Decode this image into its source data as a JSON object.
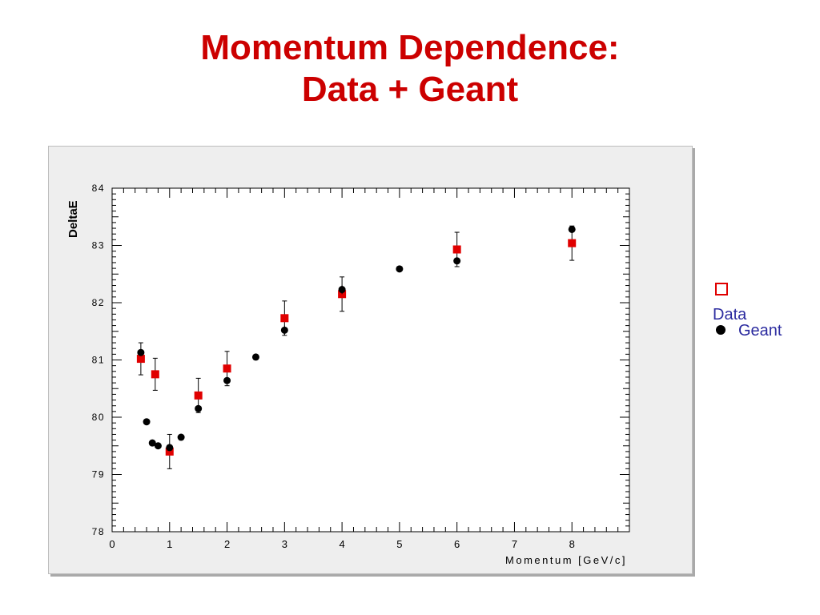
{
  "slide": {
    "title_line1": "Momentum Dependence:",
    "title_line2": "Data + Geant"
  },
  "legend": {
    "data_label": "Data",
    "geant_label": "Geant"
  },
  "chart_data": {
    "type": "scatter",
    "xlabel": "Momentum [GeV/c]",
    "ylabel": "DeltaE",
    "xlim": [
      0,
      9
    ],
    "ylim": [
      78,
      84
    ],
    "xticks": [
      0,
      1,
      2,
      3,
      4,
      5,
      6,
      7,
      8
    ],
    "yticks": [
      78,
      79,
      80,
      81,
      82,
      83,
      84
    ],
    "grid": false,
    "legend_position": "right",
    "series": [
      {
        "name": "Data",
        "marker": "square",
        "color": "#e00000",
        "points": [
          {
            "x": 0.5,
            "y": 81.02,
            "err": 0.28
          },
          {
            "x": 0.75,
            "y": 80.75,
            "err": 0.28
          },
          {
            "x": 1.0,
            "y": 79.4,
            "err": 0.3
          },
          {
            "x": 1.5,
            "y": 80.38,
            "err": 0.3
          },
          {
            "x": 2.0,
            "y": 80.85,
            "err": 0.3
          },
          {
            "x": 3.0,
            "y": 81.73,
            "err": 0.3
          },
          {
            "x": 4.0,
            "y": 82.15,
            "err": 0.3
          },
          {
            "x": 6.0,
            "y": 82.93,
            "err": 0.3
          },
          {
            "x": 8.0,
            "y": 83.04,
            "err": 0.3
          }
        ]
      },
      {
        "name": "Geant",
        "marker": "circle",
        "color": "#000000",
        "points": [
          {
            "x": 0.5,
            "y": 81.13,
            "err": 0.05
          },
          {
            "x": 0.6,
            "y": 79.92,
            "err": 0.05
          },
          {
            "x": 0.7,
            "y": 79.55,
            "err": 0.05
          },
          {
            "x": 0.8,
            "y": 79.5,
            "err": 0.04
          },
          {
            "x": 1.0,
            "y": 79.47,
            "err": 0.05
          },
          {
            "x": 1.2,
            "y": 79.65,
            "err": 0.04
          },
          {
            "x": 1.5,
            "y": 80.15,
            "err": 0.05
          },
          {
            "x": 2.0,
            "y": 80.64,
            "err": 0.06
          },
          {
            "x": 2.5,
            "y": 81.05,
            "err": 0.05
          },
          {
            "x": 3.0,
            "y": 81.52,
            "err": 0.08
          },
          {
            "x": 4.0,
            "y": 82.23,
            "err": 0.08
          },
          {
            "x": 5.0,
            "y": 82.59,
            "err": 0.05
          },
          {
            "x": 6.0,
            "y": 82.73,
            "err": 0.06
          },
          {
            "x": 8.0,
            "y": 83.28,
            "err": 0.06
          }
        ]
      }
    ]
  }
}
